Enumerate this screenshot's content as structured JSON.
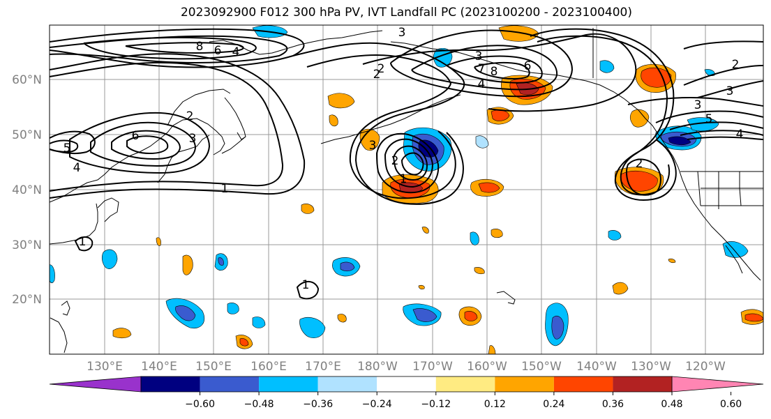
{
  "title": "2023092900 F012 300 hPa PV, IVT Landfall PC (2023100200 - 2023100400)",
  "map": {
    "lat_labels": [
      "60°N",
      "50°N",
      "40°N",
      "30°N",
      "20°N"
    ],
    "lon_labels": [
      "130°E",
      "140°E",
      "150°E",
      "160°E",
      "170°E",
      "180°W",
      "170°W",
      "160°W",
      "150°W",
      "140°W",
      "130°W",
      "120°W"
    ],
    "contour_labels": [
      "8",
      "6",
      "4",
      "3",
      "2",
      "8",
      "7",
      "6",
      "4",
      "3",
      "2",
      "6",
      "5",
      "4",
      "3",
      "2",
      "1",
      "3",
      "2",
      "1",
      "2",
      "3",
      "5",
      "4",
      "3",
      "2",
      "1",
      "1"
    ],
    "colors": {
      "land_outline": "#000000",
      "contour": "#000000",
      "grid": "#999999",
      "axis_label": "#808080"
    }
  },
  "colorbar": {
    "colors": [
      "#9932cc",
      "#000080",
      "#3a5bcf",
      "#00bfff",
      "#b0e2ff",
      "#ffffff",
      "#ffeb82",
      "#ffa500",
      "#ff4500",
      "#b22222",
      "#ff85b3"
    ],
    "tick_labels": [
      "−0.60",
      "−0.48",
      "−0.36",
      "−0.24",
      "−0.12",
      "0.12",
      "0.24",
      "0.36",
      "0.48",
      "0.60"
    ]
  }
}
